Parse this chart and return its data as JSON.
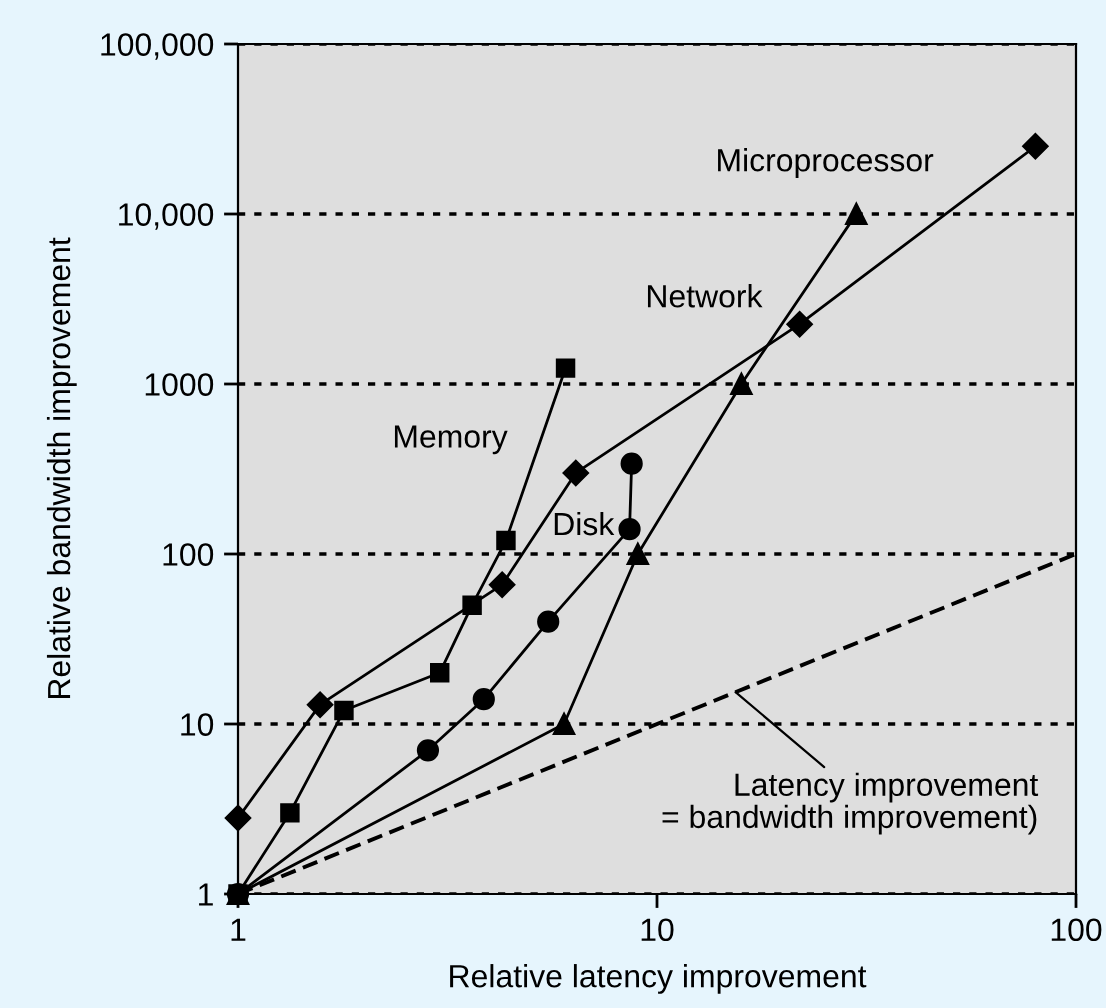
{
  "chart_data": {
    "type": "line",
    "xlabel": "Relative latency improvement",
    "ylabel": "Relative bandwidth improvement",
    "log": "xy",
    "xlim": [
      1,
      100
    ],
    "xticks": [
      1,
      10,
      100
    ],
    "ylim": [
      1,
      100000
    ],
    "yticks": [
      1,
      10,
      100,
      1000,
      {
        "value": 10000,
        "label": "10,000"
      },
      {
        "value": 100000,
        "label": "100,000"
      }
    ],
    "grid": "y",
    "legend": false,
    "series": [
      {
        "name": "Microprocessor",
        "color": "#000000",
        "marker": "diamond",
        "line_style": "solid",
        "x": [
          1,
          1.57,
          4.27,
          6.4,
          21.9,
          80
        ],
        "values": [
          2.8,
          13,
          66,
          300,
          2250,
          25000
        ]
      },
      {
        "name": "Network",
        "color": "#000000",
        "marker": "triangle",
        "line_style": "solid",
        "x": [
          1,
          6.0,
          9.0,
          15.9,
          29.9
        ],
        "values": [
          1,
          10,
          100,
          1000,
          10000
        ]
      },
      {
        "name": "Memory",
        "color": "#000000",
        "marker": "square",
        "line_style": "solid",
        "x": [
          1,
          1.33,
          1.79,
          3.03,
          3.62,
          4.36,
          6.05
        ],
        "values": [
          1,
          3,
          12,
          20,
          50,
          120,
          1240
        ]
      },
      {
        "name": "Disk",
        "color": "#000000",
        "marker": "circle",
        "line_style": "solid",
        "x": [
          1,
          2.84,
          3.86,
          5.5,
          8.6,
          8.7
        ],
        "values": [
          1,
          7,
          14,
          40,
          140,
          340
        ]
      },
      {
        "color": "#000000",
        "marker": "none",
        "line_style": "dashed",
        "x": [
          1,
          100
        ],
        "values": [
          1,
          100
        ]
      }
    ],
    "annotations": [
      {
        "text": "Latency improvement\n= bandwidth improvement)",
        "x": 15.4,
        "y": 15.4
      }
    ]
  }
}
